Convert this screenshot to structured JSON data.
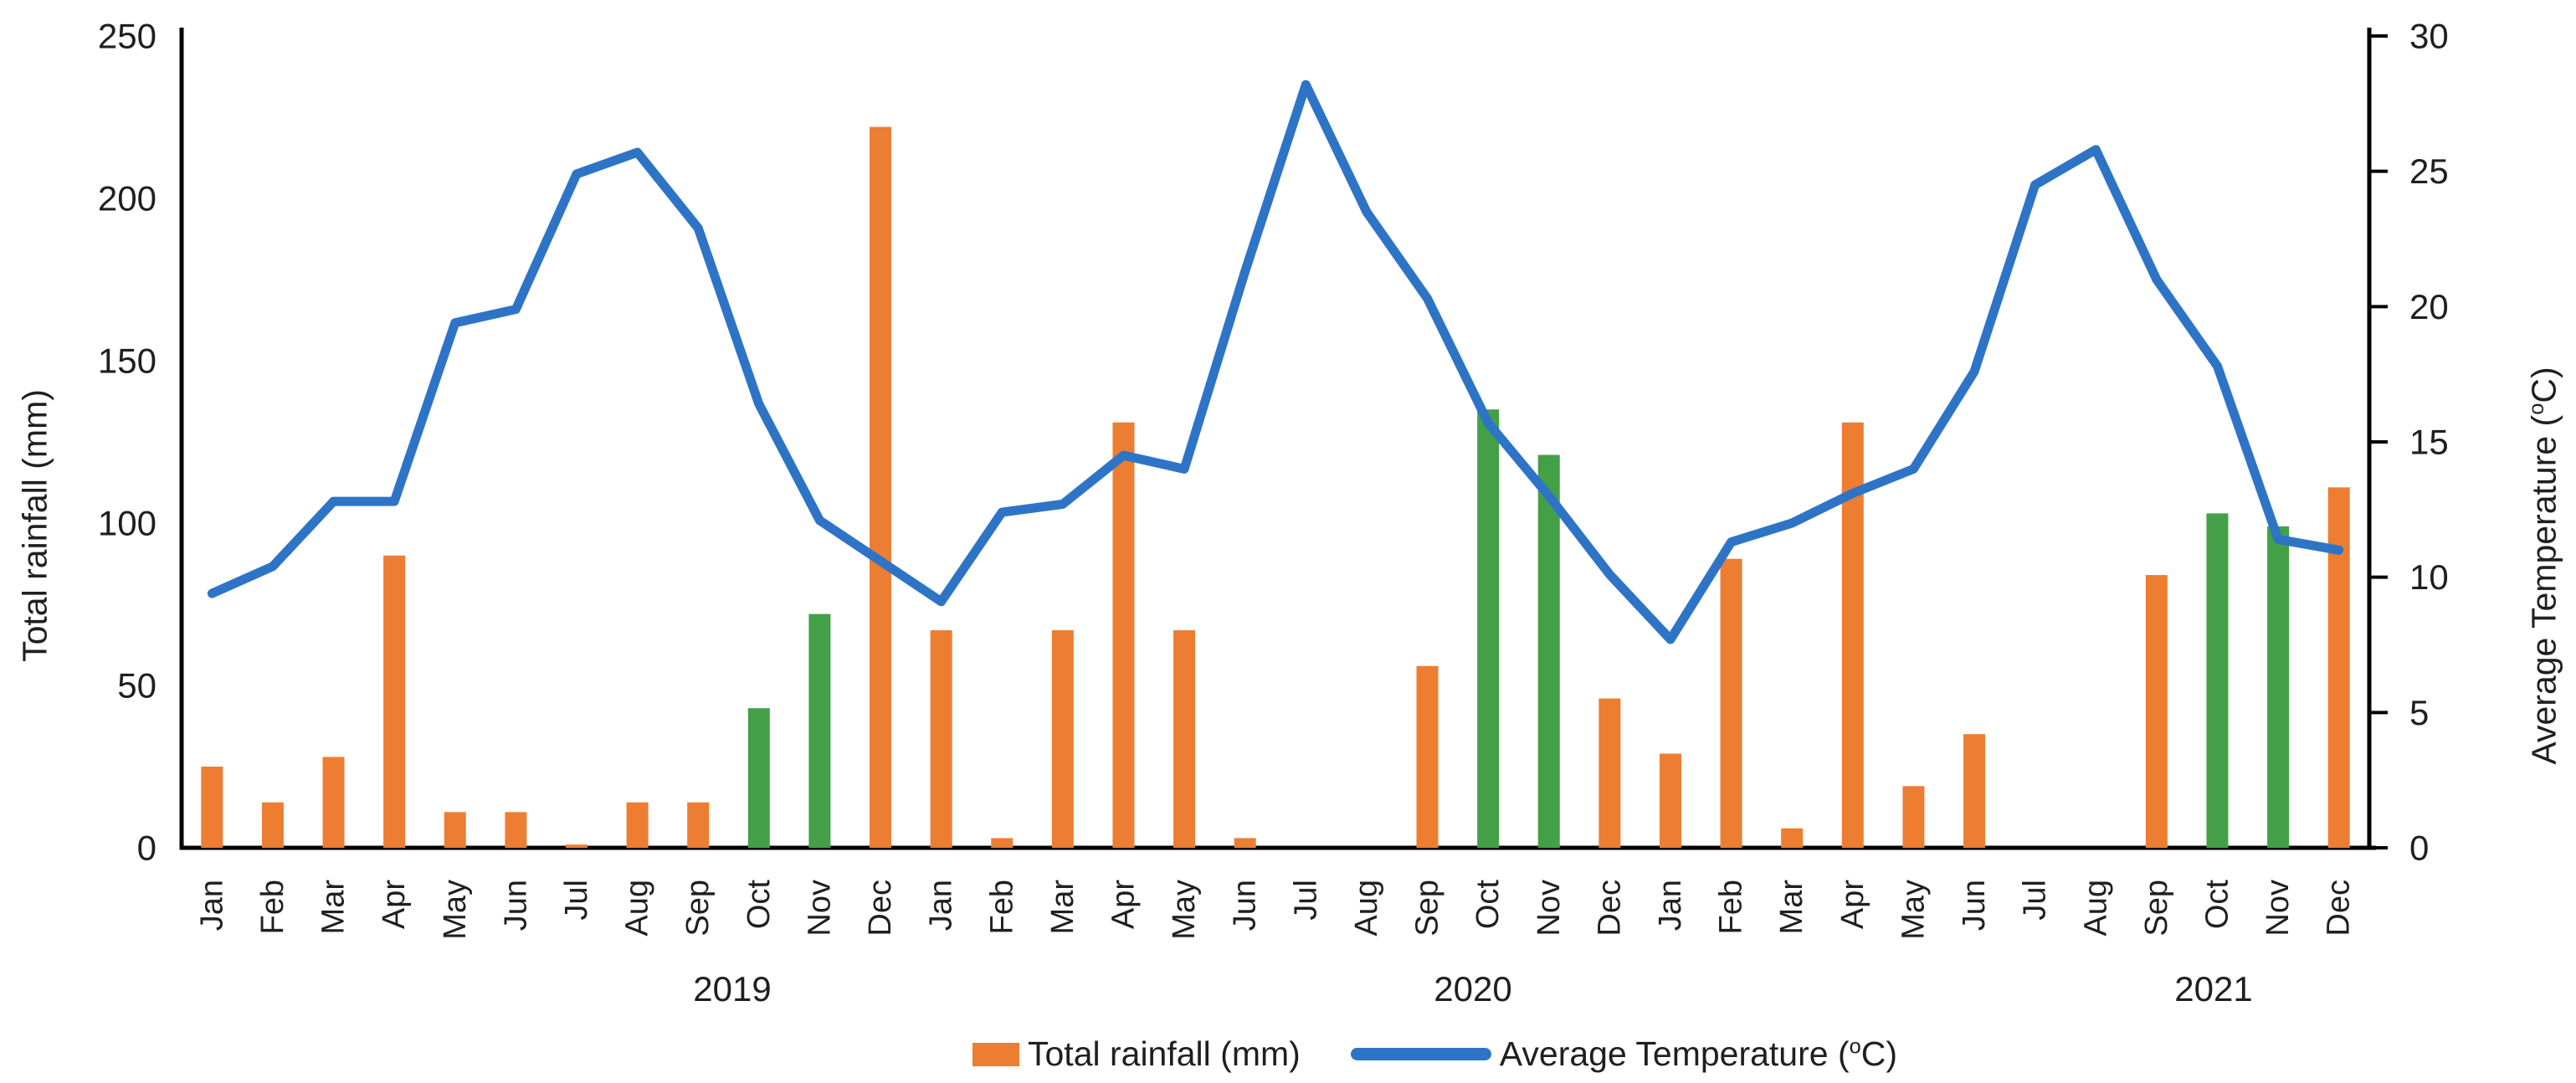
{
  "chart_data": {
    "type": "combo_bar_line",
    "title": "",
    "x_months": [
      "Jan",
      "Feb",
      "Mar",
      "Apr",
      "May",
      "Jun",
      "Jul",
      "Aug",
      "Sep",
      "Oct",
      "Nov",
      "Dec"
    ],
    "x_years": [
      "2019",
      "2020",
      "2021"
    ],
    "left_axis": {
      "label": "Total rainfall (mm)",
      "min": 0,
      "max": 250,
      "step": 50,
      "ticks": [
        250,
        200,
        150,
        100,
        50,
        0
      ]
    },
    "right_axis": {
      "label": "Average Temperature (ᵒC)",
      "min": 0,
      "max": 30,
      "step": 5,
      "ticks": [
        30,
        25,
        20,
        15,
        10,
        5,
        0
      ]
    },
    "legend_position": "bottom",
    "grid": false,
    "axis_color": "#000000",
    "text_color": "#1f1f1f",
    "series": [
      {
        "name": "Total rainfall (mm)",
        "type": "bar",
        "unit": "mm",
        "color": "#ED7D31",
        "highlight_color": "#43A047",
        "highlighted_month_indices": [
          9,
          10,
          21,
          22,
          33,
          34
        ],
        "values": [
          25,
          14,
          28,
          90,
          11,
          11,
          1,
          14,
          14,
          43,
          72,
          222,
          67,
          3,
          67,
          131,
          67,
          3,
          0,
          0,
          56,
          135,
          121,
          46,
          29,
          89,
          6,
          131,
          19,
          35,
          0,
          0,
          84,
          103,
          99,
          111
        ]
      },
      {
        "name": "Average Temperature (ᵒC)",
        "type": "line",
        "unit": "°C",
        "color": "#2E74C6",
        "values": [
          9.4,
          10.4,
          12.8,
          12.8,
          19.4,
          19.9,
          24.9,
          25.7,
          22.9,
          16.4,
          12.1,
          10.6,
          9.1,
          12.4,
          12.7,
          14.5,
          14.0,
          21.3,
          28.2,
          23.5,
          20.3,
          15.7,
          13.0,
          10.1,
          7.7,
          11.3,
          12.0,
          13.1,
          14.0,
          17.6,
          24.5,
          25.8,
          21.0,
          17.8,
          11.4,
          11.0
        ]
      }
    ]
  }
}
